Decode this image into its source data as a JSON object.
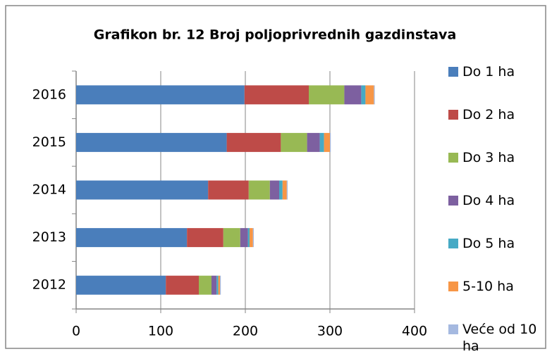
{
  "chart_data": {
    "type": "bar",
    "orientation": "horizontal",
    "stacked": true,
    "title": "Grafikon br. 12 Broj poljoprivrednih gazdinstava",
    "categories": [
      "2012",
      "2013",
      "2014",
      "2015",
      "2016"
    ],
    "series": [
      {
        "name": "Do 1 ha",
        "color": "#4a7ebb",
        "values": [
          106,
          131,
          156,
          178,
          199
        ]
      },
      {
        "name": "Do 2 ha",
        "color": "#be4b48",
        "values": [
          39,
          43,
          48,
          64,
          76
        ]
      },
      {
        "name": "Do 3 ha",
        "color": "#98b954",
        "values": [
          15,
          20,
          25,
          31,
          42
        ]
      },
      {
        "name": "Do 4 ha",
        "color": "#7d60a0",
        "values": [
          6,
          9,
          11,
          15,
          20
        ]
      },
      {
        "name": "Do 5 ha",
        "color": "#46aac5",
        "values": [
          2,
          2,
          4,
          5,
          5
        ]
      },
      {
        "name": "5-10 ha",
        "color": "#f79646",
        "values": [
          2,
          4,
          5,
          7,
          10
        ]
      },
      {
        "name": "Veće od 10 ha",
        "color": "#a5b9e0",
        "values": [
          1,
          1,
          1,
          1,
          1
        ]
      }
    ],
    "xlim": [
      0,
      400
    ],
    "xticks": [
      0,
      100,
      200,
      300,
      400
    ],
    "grid": true,
    "legend": "right"
  }
}
